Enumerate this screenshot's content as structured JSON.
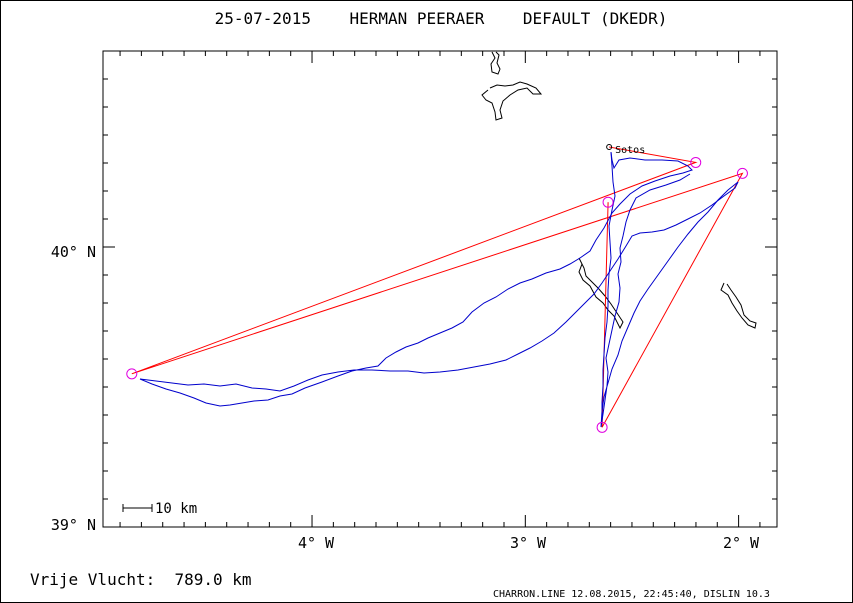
{
  "header": {
    "title": "25-07-2015    HERMAN PEERAER    DEFAULT (DKEDR)"
  },
  "map": {
    "lat_range": [
      39.0,
      40.7
    ],
    "lon_range": [
      -4.98,
      -1.82
    ],
    "lat_ticks": [
      {
        "value": 39.0,
        "label": "39° N"
      },
      {
        "value": 40.0,
        "label": "40° N"
      }
    ],
    "lon_ticks": [
      {
        "value": -4.0,
        "label": "4° W"
      },
      {
        "value": -3.0,
        "label": "3° W"
      },
      {
        "value": -2.0,
        "label": "2° W"
      }
    ],
    "minor_tick_step_deg": 0.1,
    "scale_label": "10 km",
    "place": {
      "name": "Sotos",
      "lat": 40.357,
      "lon": -2.607
    },
    "turnpoints": [
      {
        "lat": 40.357,
        "lon": -2.607
      },
      {
        "lat": 40.302,
        "lon": -2.201
      },
      {
        "lat": 39.547,
        "lon": -4.845
      },
      {
        "lat": 40.263,
        "lon": -1.982
      },
      {
        "lat": 39.356,
        "lon": -2.64
      },
      {
        "lat": 40.16,
        "lon": -2.612
      }
    ],
    "colors": {
      "track": "#0000cc",
      "task_lines": "#ff0000",
      "turnpoint_circles": "#e000e0",
      "coastline": "#000000",
      "frame": "#000000"
    }
  },
  "footer": {
    "distance": "Vrije Vlucht:  789.0 km",
    "credit": "CHARRON.LINE 12.08.2015, 22:45:40, DISLIN 10.3"
  }
}
